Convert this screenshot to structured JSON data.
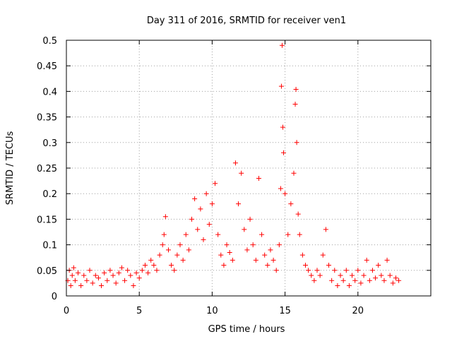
{
  "chart_data": {
    "type": "scatter",
    "title": "Day 311 of 2016, SRMTID for receiver ven1",
    "xlabel": "GPS time / hours",
    "ylabel": "SRMTID / TECUs",
    "xlim": [
      0,
      25
    ],
    "ylim": [
      0,
      0.5
    ],
    "xticks": [
      0,
      5,
      10,
      15,
      20
    ],
    "yticks": [
      0,
      0.05,
      0.1,
      0.15,
      0.2,
      0.25,
      0.3,
      0.35,
      0.4,
      0.45,
      0.5
    ],
    "xtick_labels": [
      "0",
      "5",
      "10",
      "15",
      "20"
    ],
    "ytick_labels": [
      "0",
      "0.05",
      "0.1",
      "0.15",
      "0.2",
      "0.25",
      "0.3",
      "0.35",
      "0.4",
      "0.45",
      "0.5"
    ],
    "grid": true,
    "marker": "+",
    "color": "#ff0000",
    "series": [
      {
        "name": "SRMTID",
        "points": [
          [
            0.1,
            0.03
          ],
          [
            0.2,
            0.05
          ],
          [
            0.3,
            0.02
          ],
          [
            0.4,
            0.04
          ],
          [
            0.5,
            0.055
          ],
          [
            0.6,
            0.03
          ],
          [
            0.8,
            0.045
          ],
          [
            1.0,
            0.02
          ],
          [
            1.2,
            0.04
          ],
          [
            1.4,
            0.03
          ],
          [
            1.6,
            0.05
          ],
          [
            1.8,
            0.025
          ],
          [
            2.0,
            0.04
          ],
          [
            2.2,
            0.035
          ],
          [
            2.4,
            0.02
          ],
          [
            2.6,
            0.045
          ],
          [
            2.8,
            0.03
          ],
          [
            3.0,
            0.05
          ],
          [
            3.2,
            0.04
          ],
          [
            3.4,
            0.025
          ],
          [
            3.6,
            0.045
          ],
          [
            3.8,
            0.055
          ],
          [
            4.0,
            0.03
          ],
          [
            4.2,
            0.05
          ],
          [
            4.4,
            0.04
          ],
          [
            4.6,
            0.02
          ],
          [
            4.8,
            0.045
          ],
          [
            5.0,
            0.035
          ],
          [
            5.2,
            0.05
          ],
          [
            5.4,
            0.06
          ],
          [
            5.6,
            0.045
          ],
          [
            5.8,
            0.07
          ],
          [
            6.0,
            0.06
          ],
          [
            6.2,
            0.05
          ],
          [
            6.4,
            0.08
          ],
          [
            6.6,
            0.1
          ],
          [
            6.7,
            0.12
          ],
          [
            6.8,
            0.155
          ],
          [
            7.0,
            0.09
          ],
          [
            7.2,
            0.06
          ],
          [
            7.4,
            0.05
          ],
          [
            7.6,
            0.08
          ],
          [
            7.8,
            0.1
          ],
          [
            8.0,
            0.07
          ],
          [
            8.2,
            0.12
          ],
          [
            8.4,
            0.09
          ],
          [
            8.6,
            0.15
          ],
          [
            8.8,
            0.19
          ],
          [
            9.0,
            0.13
          ],
          [
            9.2,
            0.17
          ],
          [
            9.4,
            0.11
          ],
          [
            9.6,
            0.2
          ],
          [
            9.8,
            0.14
          ],
          [
            10.0,
            0.18
          ],
          [
            10.2,
            0.22
          ],
          [
            10.4,
            0.12
          ],
          [
            10.6,
            0.08
          ],
          [
            10.8,
            0.06
          ],
          [
            11.0,
            0.1
          ],
          [
            11.2,
            0.085
          ],
          [
            11.4,
            0.07
          ],
          [
            11.6,
            0.26
          ],
          [
            11.8,
            0.18
          ],
          [
            12.0,
            0.24
          ],
          [
            12.2,
            0.13
          ],
          [
            12.4,
            0.09
          ],
          [
            12.6,
            0.15
          ],
          [
            12.8,
            0.1
          ],
          [
            13.0,
            0.07
          ],
          [
            13.2,
            0.23
          ],
          [
            13.4,
            0.12
          ],
          [
            13.6,
            0.08
          ],
          [
            13.8,
            0.06
          ],
          [
            14.0,
            0.09
          ],
          [
            14.2,
            0.07
          ],
          [
            14.4,
            0.05
          ],
          [
            14.6,
            0.1
          ],
          [
            14.7,
            0.21
          ],
          [
            14.75,
            0.41
          ],
          [
            14.8,
            0.49
          ],
          [
            14.85,
            0.33
          ],
          [
            14.9,
            0.28
          ],
          [
            15.0,
            0.2
          ],
          [
            15.2,
            0.12
          ],
          [
            15.4,
            0.18
          ],
          [
            15.6,
            0.24
          ],
          [
            15.7,
            0.375
          ],
          [
            15.75,
            0.404
          ],
          [
            15.8,
            0.3
          ],
          [
            15.9,
            0.16
          ],
          [
            16.0,
            0.12
          ],
          [
            16.2,
            0.08
          ],
          [
            16.4,
            0.06
          ],
          [
            16.6,
            0.05
          ],
          [
            16.8,
            0.04
          ],
          [
            17.0,
            0.03
          ],
          [
            17.2,
            0.05
          ],
          [
            17.4,
            0.04
          ],
          [
            17.6,
            0.08
          ],
          [
            17.8,
            0.13
          ],
          [
            18.0,
            0.06
          ],
          [
            18.2,
            0.03
          ],
          [
            18.4,
            0.05
          ],
          [
            18.6,
            0.02
          ],
          [
            18.8,
            0.04
          ],
          [
            19.0,
            0.03
          ],
          [
            19.2,
            0.05
          ],
          [
            19.4,
            0.02
          ],
          [
            19.6,
            0.04
          ],
          [
            19.8,
            0.03
          ],
          [
            20.0,
            0.05
          ],
          [
            20.2,
            0.025
          ],
          [
            20.4,
            0.04
          ],
          [
            20.6,
            0.07
          ],
          [
            20.8,
            0.03
          ],
          [
            21.0,
            0.05
          ],
          [
            21.2,
            0.035
          ],
          [
            21.4,
            0.06
          ],
          [
            21.6,
            0.04
          ],
          [
            21.8,
            0.03
          ],
          [
            22.0,
            0.07
          ],
          [
            22.2,
            0.04
          ],
          [
            22.4,
            0.025
          ],
          [
            22.6,
            0.035
          ],
          [
            22.8,
            0.03
          ]
        ]
      }
    ]
  }
}
